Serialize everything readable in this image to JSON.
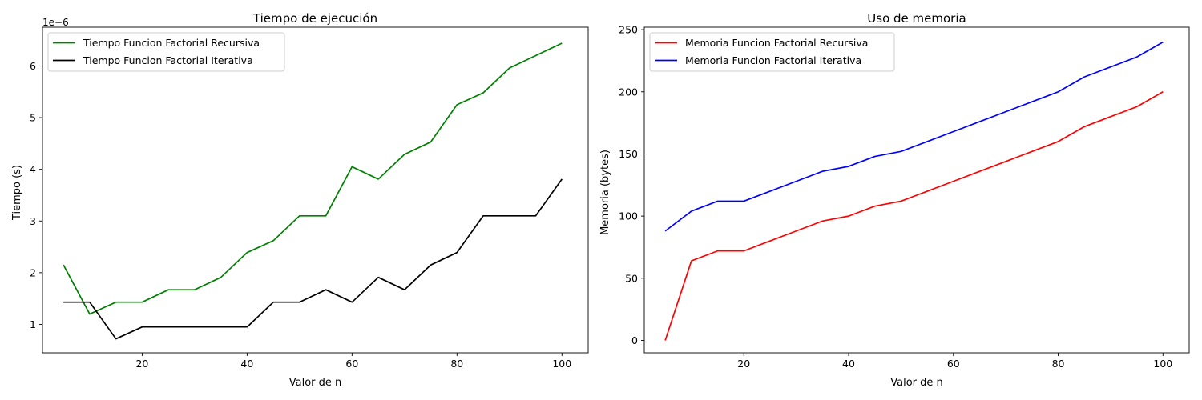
{
  "chart_data": [
    {
      "type": "line",
      "title": "Tiempo de ejecución",
      "xlabel": "Valor de n",
      "ylabel": "Tiempo (s)",
      "offset_label": "1e−6",
      "xlim": [
        1,
        105
      ],
      "ylim": [
        0.45,
        6.75
      ],
      "xticks": [
        20,
        40,
        60,
        80,
        100
      ],
      "yticks": [
        1,
        2,
        3,
        4,
        5,
        6
      ],
      "grid": false,
      "legend_position": "top-left",
      "x": [
        5,
        10,
        15,
        20,
        25,
        30,
        35,
        40,
        45,
        50,
        55,
        60,
        65,
        70,
        75,
        80,
        85,
        90,
        95,
        100
      ],
      "series": [
        {
          "name": "Tiempo Funcion Factorial Recursiva",
          "color": "#008000",
          "values": [
            2.15,
            1.2,
            1.43,
            1.43,
            1.67,
            1.67,
            1.91,
            2.39,
            2.62,
            3.1,
            3.1,
            4.05,
            3.81,
            4.29,
            4.53,
            5.25,
            5.48,
            5.96,
            6.2,
            6.44
          ]
        },
        {
          "name": "Tiempo Funcion Factorial Iterativa",
          "color": "#000000",
          "values": [
            1.43,
            1.43,
            0.72,
            0.95,
            0.95,
            0.95,
            0.95,
            0.95,
            1.43,
            1.43,
            1.67,
            1.43,
            1.91,
            1.67,
            2.15,
            2.39,
            3.1,
            3.1,
            3.1,
            3.81
          ]
        }
      ]
    },
    {
      "type": "line",
      "title": "Uso de memoria",
      "xlabel": "Valor de n",
      "ylabel": "Memoria (bytes)",
      "xlim": [
        1,
        105
      ],
      "ylim": [
        -10,
        252
      ],
      "xticks": [
        20,
        40,
        60,
        80,
        100
      ],
      "yticks": [
        0,
        50,
        100,
        150,
        200,
        250
      ],
      "grid": false,
      "legend_position": "top-left",
      "x": [
        5,
        10,
        15,
        20,
        25,
        30,
        35,
        40,
        45,
        50,
        55,
        60,
        65,
        70,
        75,
        80,
        85,
        90,
        95,
        100
      ],
      "series": [
        {
          "name": "Memoria Funcion Factorial Recursiva",
          "color": "#ff0000",
          "values": [
            0,
            64,
            72,
            72,
            80,
            88,
            96,
            100,
            108,
            112,
            120,
            128,
            136,
            144,
            152,
            160,
            172,
            180,
            188,
            200
          ]
        },
        {
          "name": "Memoria Funcion Factorial Iterativa",
          "color": "#0000ff",
          "values": [
            88,
            104,
            112,
            112,
            120,
            128,
            136,
            140,
            148,
            152,
            160,
            168,
            176,
            184,
            192,
            200,
            212,
            220,
            228,
            240
          ]
        }
      ]
    }
  ]
}
